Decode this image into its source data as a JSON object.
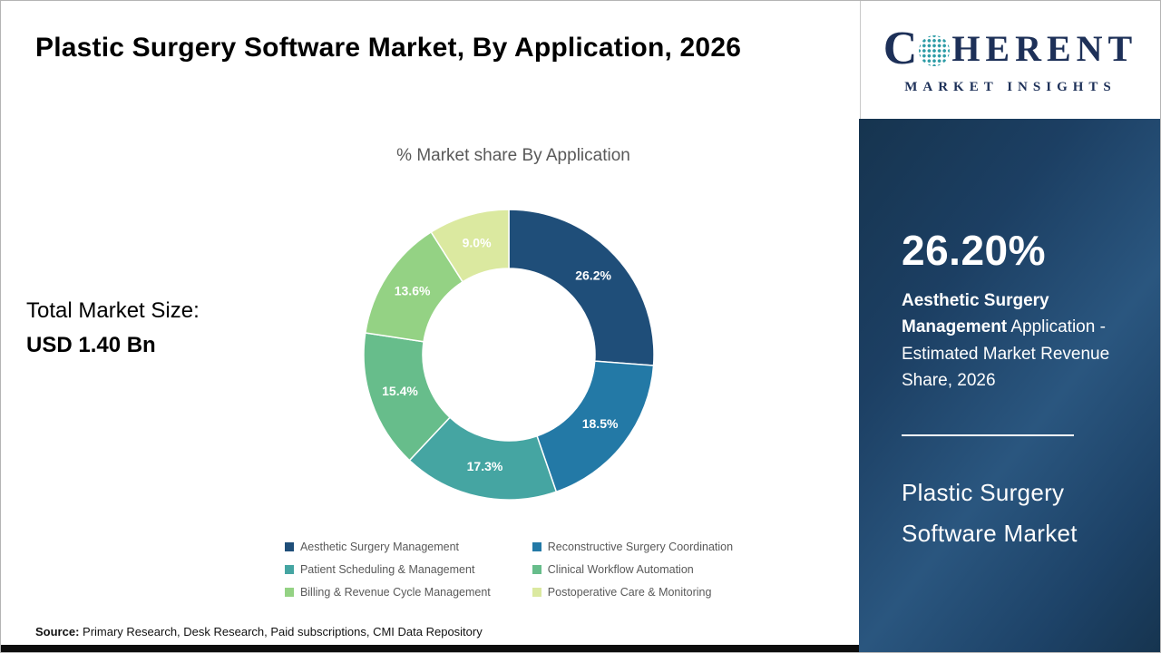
{
  "header": {
    "title": "Plastic Surgery Software Market, By Application, 2026"
  },
  "logo": {
    "letter_c": "C",
    "letters_rest": "HERENT",
    "tagline": "MARKET INSIGHTS",
    "brand_color": "#1d3058"
  },
  "left_stats": {
    "label": "Total Market Size:",
    "value": "USD 1.40 Bn"
  },
  "chart_data": {
    "type": "pie",
    "donut": true,
    "title": "% Market share By Application",
    "units": "%",
    "start_angle_deg": 0,
    "direction": "clockwise",
    "inner_radius_ratio": 0.59,
    "legend_position": "bottom",
    "series": [
      {
        "name": "Aesthetic Surgery Management",
        "value": 26.2,
        "label": "26.2%",
        "color": "#1f4e79"
      },
      {
        "name": "Reconstructive Surgery Coordination",
        "value": 18.5,
        "label": "18.5%",
        "color": "#2379a6"
      },
      {
        "name": "Patient Scheduling & Management",
        "value": 17.3,
        "label": "17.3%",
        "color": "#45a5a2"
      },
      {
        "name": "Clinical Workflow Automation",
        "value": 15.4,
        "label": "15.4%",
        "color": "#67bd8b"
      },
      {
        "name": "Billing & Revenue Cycle Management",
        "value": 13.6,
        "label": "13.6%",
        "color": "#94d284"
      },
      {
        "name": "Postoperative Care & Monitoring",
        "value": 9.0,
        "label": "9.0%",
        "color": "#dbe9a0"
      }
    ]
  },
  "side_panel": {
    "headline_value": "26.20%",
    "headline_bold": "Aesthetic Surgery Management",
    "headline_rest": " Application - Estimated Market Revenue Share, 2026",
    "market_name_line1": "Plastic Surgery",
    "market_name_line2": "Software Market",
    "panel_bg": "#1c3f63"
  },
  "footer": {
    "source_label": "Source:",
    "source_text": " Primary Research, Desk Research, Paid subscriptions, CMI Data Repository"
  }
}
